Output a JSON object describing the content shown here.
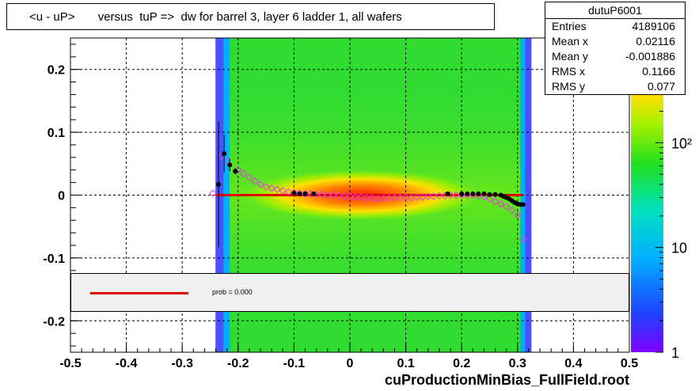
{
  "title": "<u - uP>       versus  tuP =>  dw for barrel 3, layer 6 ladder 1, all wafers",
  "footer": "cuProductionMinBias_FullField.root",
  "stats": {
    "name": "dutuP6001",
    "rows": [
      {
        "label": "Entries",
        "value": "4189106"
      },
      {
        "label": "Mean x",
        "value": "0.02116"
      },
      {
        "label": "Mean y",
        "value": "-0.001886"
      },
      {
        "label": "RMS x",
        "value": "0.1166"
      },
      {
        "label": "RMS y",
        "value": "0.077"
      }
    ]
  },
  "legend": {
    "text": "prob = 0.000",
    "line_color": "#e00000"
  },
  "colors": {
    "fit": "#e00000",
    "profile_black": "#000000",
    "profile_magenta": "#e040e0"
  },
  "chart_data": {
    "type": "heatmap",
    "xlim": [
      -0.5,
      0.5
    ],
    "ylim": [
      -0.25,
      0.25
    ],
    "x_ticks": [
      -0.5,
      -0.4,
      -0.3,
      -0.2,
      -0.1,
      0,
      0.1,
      0.2,
      0.3,
      0.4,
      0.5
    ],
    "y_ticks": [
      -0.2,
      -0.1,
      0,
      0.1,
      0.2
    ],
    "grid": true,
    "occupied_x_range": [
      -0.215,
      0.305
    ],
    "colorbar": {
      "scale": "log",
      "min": 1,
      "max": 1000,
      "tick_labels": [
        {
          "value": 1,
          "label": "1"
        },
        {
          "value": 10,
          "label": "10"
        },
        {
          "value": 100,
          "label": "10²"
        }
      ]
    },
    "fit_line": {
      "x": [
        -0.24,
        0.31
      ],
      "y": [
        0,
        0
      ]
    },
    "profile_black": {
      "x": [
        -0.235,
        -0.225,
        -0.215,
        -0.205,
        -0.1,
        -0.09,
        -0.08,
        -0.065,
        0.175,
        0.2,
        0.21,
        0.22,
        0.23,
        0.24,
        0.25,
        0.26,
        0.27,
        0.275,
        0.28,
        0.285,
        0.29,
        0.295,
        0.3,
        0.305,
        0.31
      ],
      "y": [
        0.017,
        0.066,
        0.048,
        0.038,
        0.003,
        0.002,
        0.002,
        0.002,
        0.002,
        0.002,
        0.002,
        0.002,
        0.002,
        0.002,
        0.001,
        0.001,
        0.0,
        -0.002,
        -0.004,
        -0.006,
        -0.009,
        -0.012,
        -0.014,
        -0.015,
        -0.015
      ],
      "yerr": [
        0.1,
        0.03,
        0.01,
        0.005,
        0,
        0,
        0,
        0,
        0,
        0,
        0,
        0,
        0,
        0,
        0,
        0,
        0,
        0,
        0,
        0,
        0,
        0,
        0,
        0,
        0
      ]
    },
    "profile_magenta": {
      "x": [
        -0.245,
        -0.23,
        -0.22,
        -0.2,
        -0.19,
        -0.18,
        -0.17,
        -0.16,
        -0.15,
        -0.14,
        -0.13,
        -0.12,
        -0.11,
        -0.1,
        -0.09,
        -0.08,
        -0.07,
        -0.06,
        -0.05,
        -0.04,
        -0.03,
        -0.02,
        -0.01,
        0.0,
        0.01,
        0.02,
        0.03,
        0.04,
        0.05,
        0.06,
        0.07,
        0.08,
        0.09,
        0.1,
        0.11,
        0.12,
        0.13,
        0.14,
        0.15,
        0.16,
        0.17,
        0.18,
        0.19,
        0.2,
        0.21,
        0.22,
        0.23,
        0.24,
        0.25,
        0.26,
        0.27,
        0.28,
        0.29,
        0.3,
        0.31
      ],
      "y": [
        0.003,
        0.062,
        0.054,
        0.04,
        0.034,
        0.028,
        0.022,
        0.017,
        0.013,
        0.011,
        0.009,
        0.007,
        0.005,
        0.004,
        0.003,
        0.002,
        0.002,
        0.001,
        0.001,
        0.0,
        0.0,
        -0.001,
        -0.002,
        -0.002,
        -0.003,
        -0.003,
        -0.004,
        -0.005,
        -0.006,
        -0.005,
        -0.004,
        -0.004,
        -0.004,
        -0.004,
        -0.004,
        -0.003,
        -0.003,
        -0.002,
        -0.002,
        -0.001,
        -0.001,
        0.0,
        0.0,
        0.0,
        0.0,
        0.0,
        -0.001,
        -0.003,
        -0.006,
        -0.01,
        -0.014,
        -0.018,
        -0.024,
        -0.032,
        -0.07
      ]
    }
  }
}
